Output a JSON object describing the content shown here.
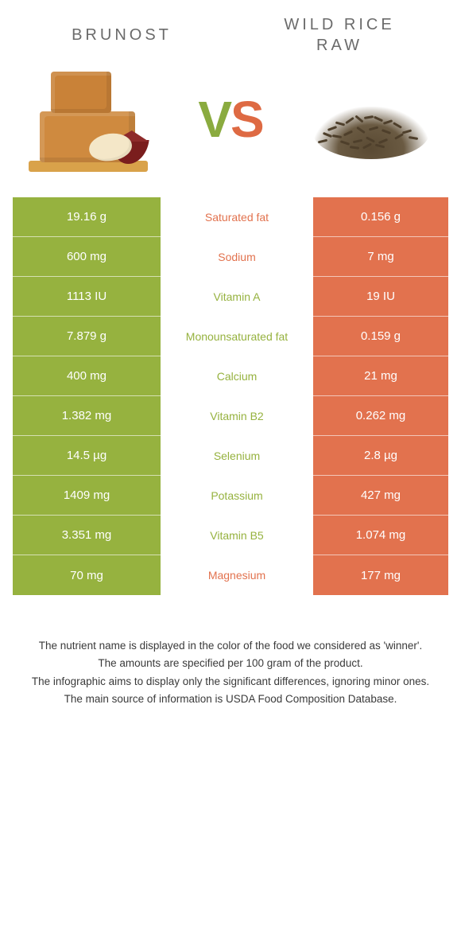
{
  "colors": {
    "green": "#96b23f",
    "orange": "#e2724e",
    "title_text": "#6b6b6b",
    "mid_text_green": "#96b23f",
    "mid_text_orange": "#e2724e",
    "background": "#ffffff"
  },
  "header": {
    "left_title": "Brunost",
    "right_title": "Wild Rice\nRaw",
    "vs": {
      "v": "V",
      "s": "S"
    }
  },
  "rows": [
    {
      "left": "19.16 g",
      "label": "Saturated fat",
      "right": "0.156 g",
      "winner": "right"
    },
    {
      "left": "600 mg",
      "label": "Sodium",
      "right": "7 mg",
      "winner": "right"
    },
    {
      "left": "1113 IU",
      "label": "Vitamin A",
      "right": "19 IU",
      "winner": "left"
    },
    {
      "left": "7.879 g",
      "label": "Monounsaturated fat",
      "right": "0.159 g",
      "winner": "left"
    },
    {
      "left": "400 mg",
      "label": "Calcium",
      "right": "21 mg",
      "winner": "left"
    },
    {
      "left": "1.382 mg",
      "label": "Vitamin B2",
      "right": "0.262 mg",
      "winner": "left"
    },
    {
      "left": "14.5 µg",
      "label": "Selenium",
      "right": "2.8 µg",
      "winner": "left"
    },
    {
      "left": "1409 mg",
      "label": "Potassium",
      "right": "427 mg",
      "winner": "left"
    },
    {
      "left": "3.351 mg",
      "label": "Vitamin B5",
      "right": "1.074 mg",
      "winner": "left"
    },
    {
      "left": "70 mg",
      "label": "Magnesium",
      "right": "177 mg",
      "winner": "right"
    }
  ],
  "footnotes": [
    "The nutrient name is displayed in the color of the food we considered as 'winner'.",
    "The amounts are specified per 100 gram of the product.",
    "The infographic aims to display only the significant differences, ignoring minor ones.",
    "The main source of information is USDA Food Composition Database."
  ]
}
